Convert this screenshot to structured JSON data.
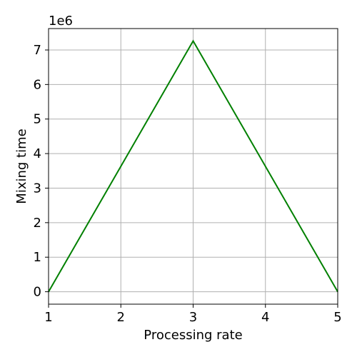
{
  "chart_data": {
    "type": "line",
    "title": "",
    "xlabel": "Processing rate",
    "ylabel": "Mixing time",
    "y_offset_label": "1e6",
    "xlim": [
      1,
      5
    ],
    "ylim": [
      -0.36,
      7.62
    ],
    "x_ticks": [
      1,
      2,
      3,
      4,
      5
    ],
    "x_tick_labels": [
      "1",
      "2",
      "3",
      "4",
      "5"
    ],
    "y_ticks": [
      0,
      1,
      2,
      3,
      4,
      5,
      6,
      7
    ],
    "y_tick_labels": [
      "0",
      "1",
      "2",
      "3",
      "4",
      "5",
      "6",
      "7"
    ],
    "y_scale_multiplier": 1000000,
    "grid": true,
    "series": [
      {
        "color": "#008000",
        "x": [
          1,
          3,
          5
        ],
        "y": [
          0,
          7.26,
          0
        ]
      }
    ]
  }
}
